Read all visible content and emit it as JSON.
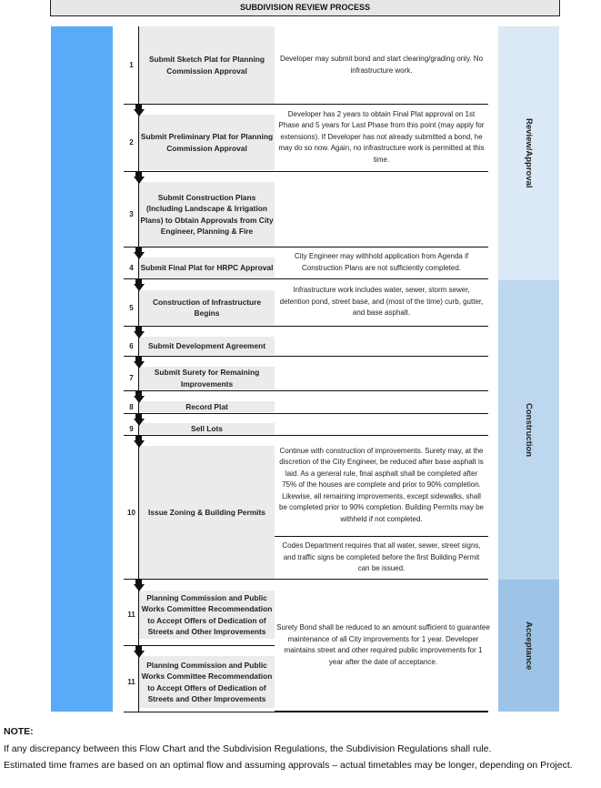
{
  "header": {
    "title": "SUBDIVISION REVIEW PROCESS"
  },
  "phases": [
    {
      "label": "Review/Approval",
      "color": "#dbe9f6"
    },
    {
      "label": "Construction",
      "color": "#bdd7ef"
    },
    {
      "label": "Acceptance",
      "color": "#9dc3e6"
    }
  ],
  "steps": [
    {
      "num": "1",
      "title": "Submit Sketch Plat for Planning Commission Approval",
      "desc": "Developer may submit bond and start clearing/grading only. No infrastructure work."
    },
    {
      "num": "2",
      "title": "Submit Preliminary Plat for Planning Commission Approval",
      "desc": "Developer has 2 years to obtain Final Plat approval on 1st Phase and 5 years for Last Phase from this point (may apply for extensions). If Developer has not already submitted a bond, he may do so now. Again, no infrastructure work is permitted at this time."
    },
    {
      "num": "3",
      "title": "Submit Construction Plans (Including Landscape & Irrigation Plans) to Obtain Approvals from City Engineer, Planning & Fire",
      "desc": ""
    },
    {
      "num": "4",
      "title": "Submit Final Plat for HRPC Approval",
      "desc": "City Engineer may withhold application from Agenda if Construction Plans are not sufficiently completed."
    },
    {
      "num": "5",
      "title": "Construction of Infrastructure Begins",
      "desc": "Infrastructure work includes water, sewer, storm sewer, detention pond, street base, and (most of the time) curb, gutter, and base asphalt."
    },
    {
      "num": "6",
      "title": "Submit Development Agreement",
      "desc": ""
    },
    {
      "num": "7",
      "title": "Submit Surety for Remaining Improvements",
      "desc": ""
    },
    {
      "num": "8",
      "title": "Record Plat",
      "desc": ""
    },
    {
      "num": "9",
      "title": "Sell Lots",
      "desc": ""
    },
    {
      "num": "10",
      "title": "Issue Zoning & Building Permits",
      "desc": "Continue with construction of improvements. Surety may, at the discretion of the City Engineer, be reduced after base asphalt is laid. As a general rule, final asphalt shall be completed after 75% of the houses are complete and prior to 90% completion. Likewise, all remaining improvements, except sidewalks, shall be completed prior to 90% completion. Building Permits may be withheld if not completed.",
      "desc2": "Codes Department requires that all water, sewer, street signs, and traffic signs be completed before the first Building Permit can be issued."
    },
    {
      "num": "11",
      "title": "Planning Commission and Public Works Committee Recommendation to Accept Offers of Dedication of Streets and Other Improvements",
      "desc": "Surety Bond shall be reduced to an amount sufficient to guarantee maintenance of all City improvements for 1 year. Developer maintains street and other required public improvements for 1 year after the date of acceptance."
    },
    {
      "num": "11",
      "title": "Planning Commission and Public Works Committee Recommendation to Accept Offers of Dedication of Streets and Other Improvements",
      "desc": ""
    }
  ],
  "note": {
    "heading": "NOTE:",
    "lines": [
      "If any discrepancy between this Flow Chart and the Subdivision Regulations, the Subdivision Regulations shall rule.",
      "Estimated time frames are based on an optimal flow and assuming approvals – actual timetables may be longer, depending on Project."
    ]
  }
}
